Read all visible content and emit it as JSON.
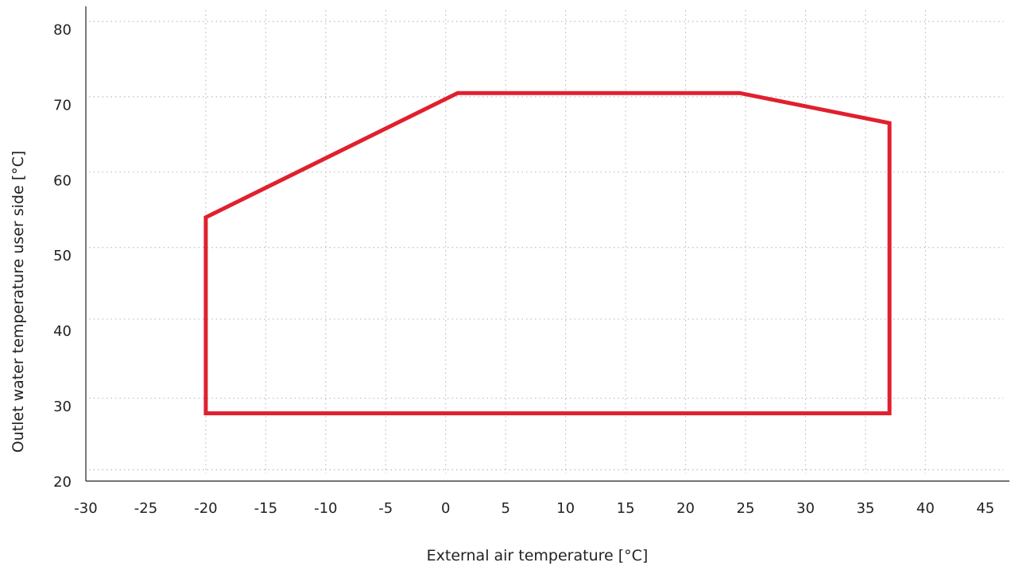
{
  "chart_data": {
    "type": "line",
    "title": "",
    "xlabel": "External air temperature [°C]",
    "ylabel": "Outlet water temperature user side [°C]",
    "xlim": [
      -30,
      47
    ],
    "ylim": [
      20,
      83
    ],
    "x_ticks": [
      "-30",
      "-25",
      "-20",
      "-15",
      "-10",
      "-5",
      "0",
      "5",
      "10",
      "15",
      "20",
      "25",
      "30",
      "35",
      "40",
      "45"
    ],
    "y_ticks": [
      "20",
      "30",
      "40",
      "50",
      "60",
      "70",
      "80"
    ],
    "x_gridlines": [
      -20,
      -15,
      -10,
      -5,
      0,
      5,
      10,
      15,
      20,
      25,
      30,
      35,
      40
    ],
    "y_gridlines": [
      21.5,
      31,
      41.5,
      51,
      61,
      71,
      81
    ],
    "grid": true,
    "legend": "none",
    "series": [
      {
        "color": "#e0202e",
        "closed": true,
        "points": [
          {
            "x": -20,
            "y": 29
          },
          {
            "x": -20,
            "y": 55
          },
          {
            "x": 1,
            "y": 71.5
          },
          {
            "x": 24.5,
            "y": 71.5
          },
          {
            "x": 37,
            "y": 67.5
          },
          {
            "x": 37,
            "y": 29
          }
        ]
      }
    ]
  }
}
